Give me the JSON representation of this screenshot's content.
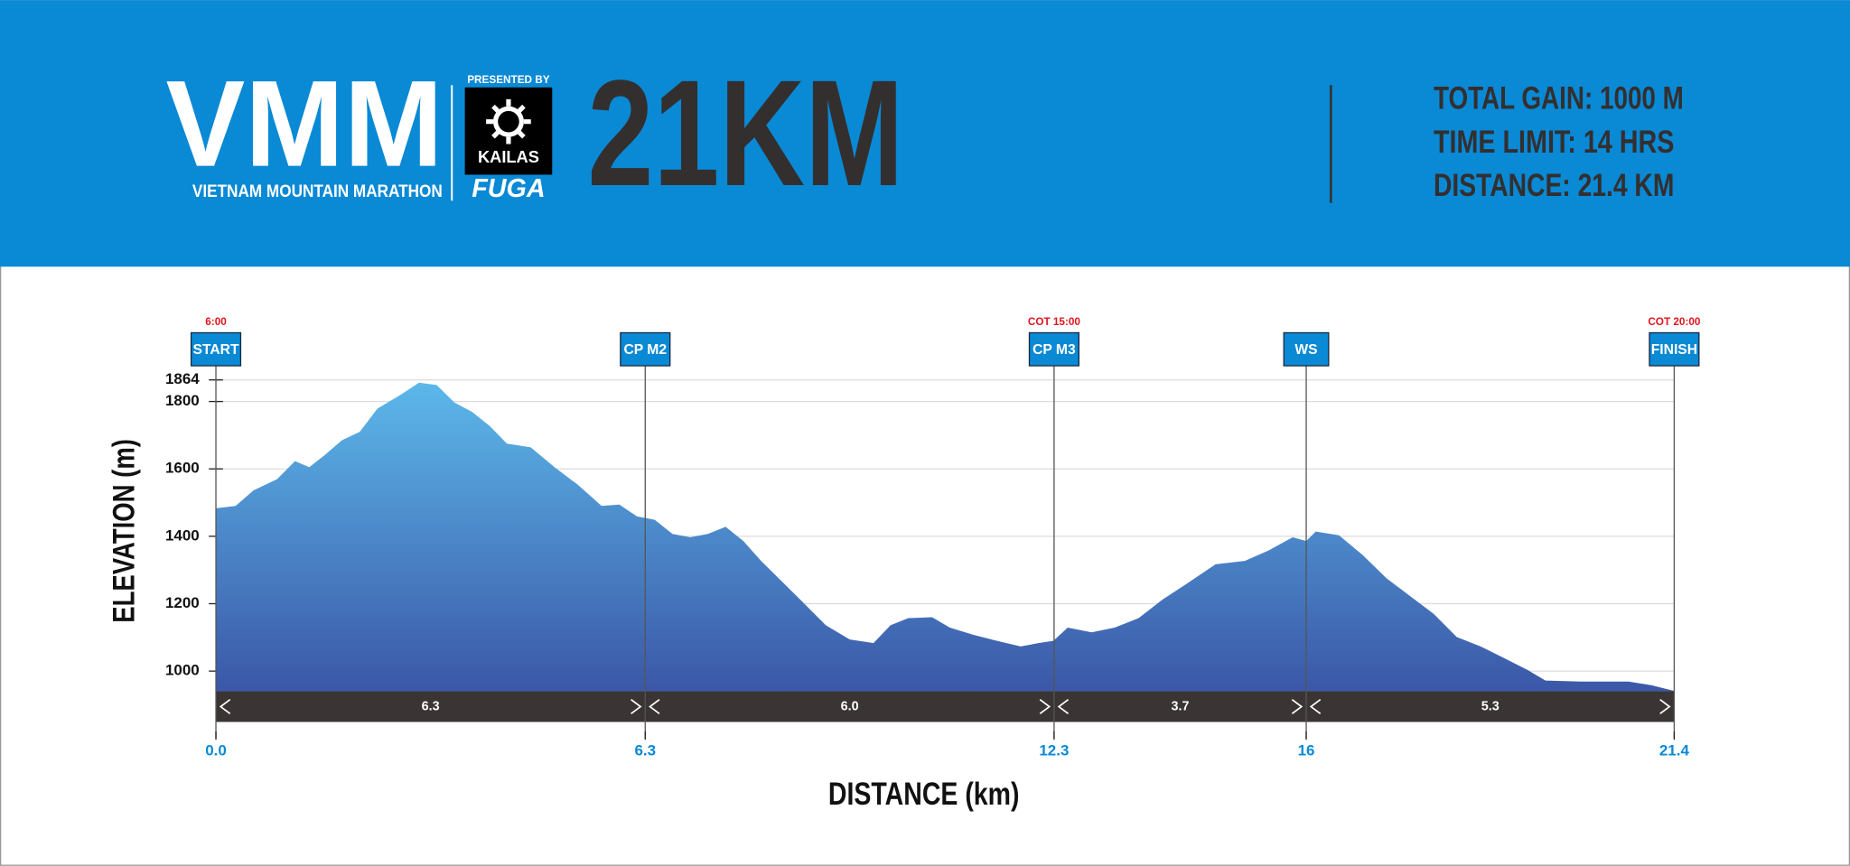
{
  "header": {
    "logo": "VMM",
    "logo_subtitle": "VIETNAM MOUNTAIN MARATHON",
    "presented_by": "PRESENTED BY",
    "sponsor": "KAILAS",
    "sponsor_brand": "FUGA",
    "race": "21KM",
    "stats": [
      "TOTAL GAIN: 1000 M",
      "TIME LIMIT: 14 HRS",
      "DISTANCE: 21.4 KM"
    ]
  },
  "chart_data": {
    "type": "area",
    "x_label": "DISTANCE (km)",
    "y_label": "ELEVATION (m)",
    "x": [
      0,
      0.29,
      0.55,
      0.9,
      1.16,
      1.37,
      1.59,
      1.85,
      2.11,
      2.37,
      2.72,
      2.98,
      3.24,
      3.5,
      3.76,
      4.02,
      4.27,
      4.62,
      4.97,
      5.31,
      5.66,
      5.92,
      6.18,
      6.44,
      6.7,
      6.96,
      7.22,
      7.48,
      7.74,
      8.0,
      8.26,
      8.61,
      8.95,
      9.3,
      9.65,
      9.9,
      10.16,
      10.51,
      10.77,
      11.11,
      11.46,
      11.81,
      12.07,
      12.29,
      12.5,
      12.85,
      13.19,
      13.54,
      13.89,
      14.23,
      14.67,
      15.1,
      15.45,
      15.8,
      16.0,
      16.14,
      16.48,
      16.83,
      17.18,
      17.52,
      17.87,
      18.21,
      18.56,
      18.91,
      19.25,
      19.51,
      20.03,
      20.73,
      21.07,
      21.4
    ],
    "values": [
      1483,
      1490,
      1536,
      1570,
      1623,
      1605,
      1640,
      1685,
      1710,
      1779,
      1821,
      1856,
      1849,
      1797,
      1769,
      1727,
      1675,
      1664,
      1605,
      1553,
      1490,
      1494,
      1459,
      1449,
      1407,
      1397,
      1407,
      1428,
      1386,
      1327,
      1275,
      1205,
      1136,
      1094,
      1083,
      1136,
      1157,
      1160,
      1129,
      1108,
      1090,
      1073,
      1083,
      1090,
      1129,
      1115,
      1129,
      1157,
      1212,
      1257,
      1317,
      1327,
      1358,
      1397,
      1386,
      1414,
      1403,
      1344,
      1275,
      1223,
      1170,
      1101,
      1073,
      1038,
      1003,
      972,
      969,
      969,
      958,
      941
    ],
    "xlim": [
      0,
      21.4
    ],
    "ylim": [
      940,
      1864
    ],
    "xticks": [
      {
        "value": 0,
        "label": "0.0"
      },
      6.3,
      12.3,
      16,
      21.4
    ],
    "yticks": [
      1000,
      1200,
      1400,
      1600,
      1800,
      1864
    ],
    "grid": true,
    "checkpoints": [
      {
        "name": "START",
        "x": 0,
        "cutoff": "6:00"
      },
      {
        "name": "CP M2",
        "x": 6.3
      },
      {
        "name": "CP M3",
        "x": 12.3,
        "cutoff": "COT 15:00"
      },
      {
        "name": "WS",
        "x": 16
      },
      {
        "name": "FINISH",
        "x": 21.4,
        "cutoff": "COT 20:00"
      }
    ],
    "segments": [
      "6.3",
      "6.0",
      "3.7",
      "5.3"
    ]
  }
}
